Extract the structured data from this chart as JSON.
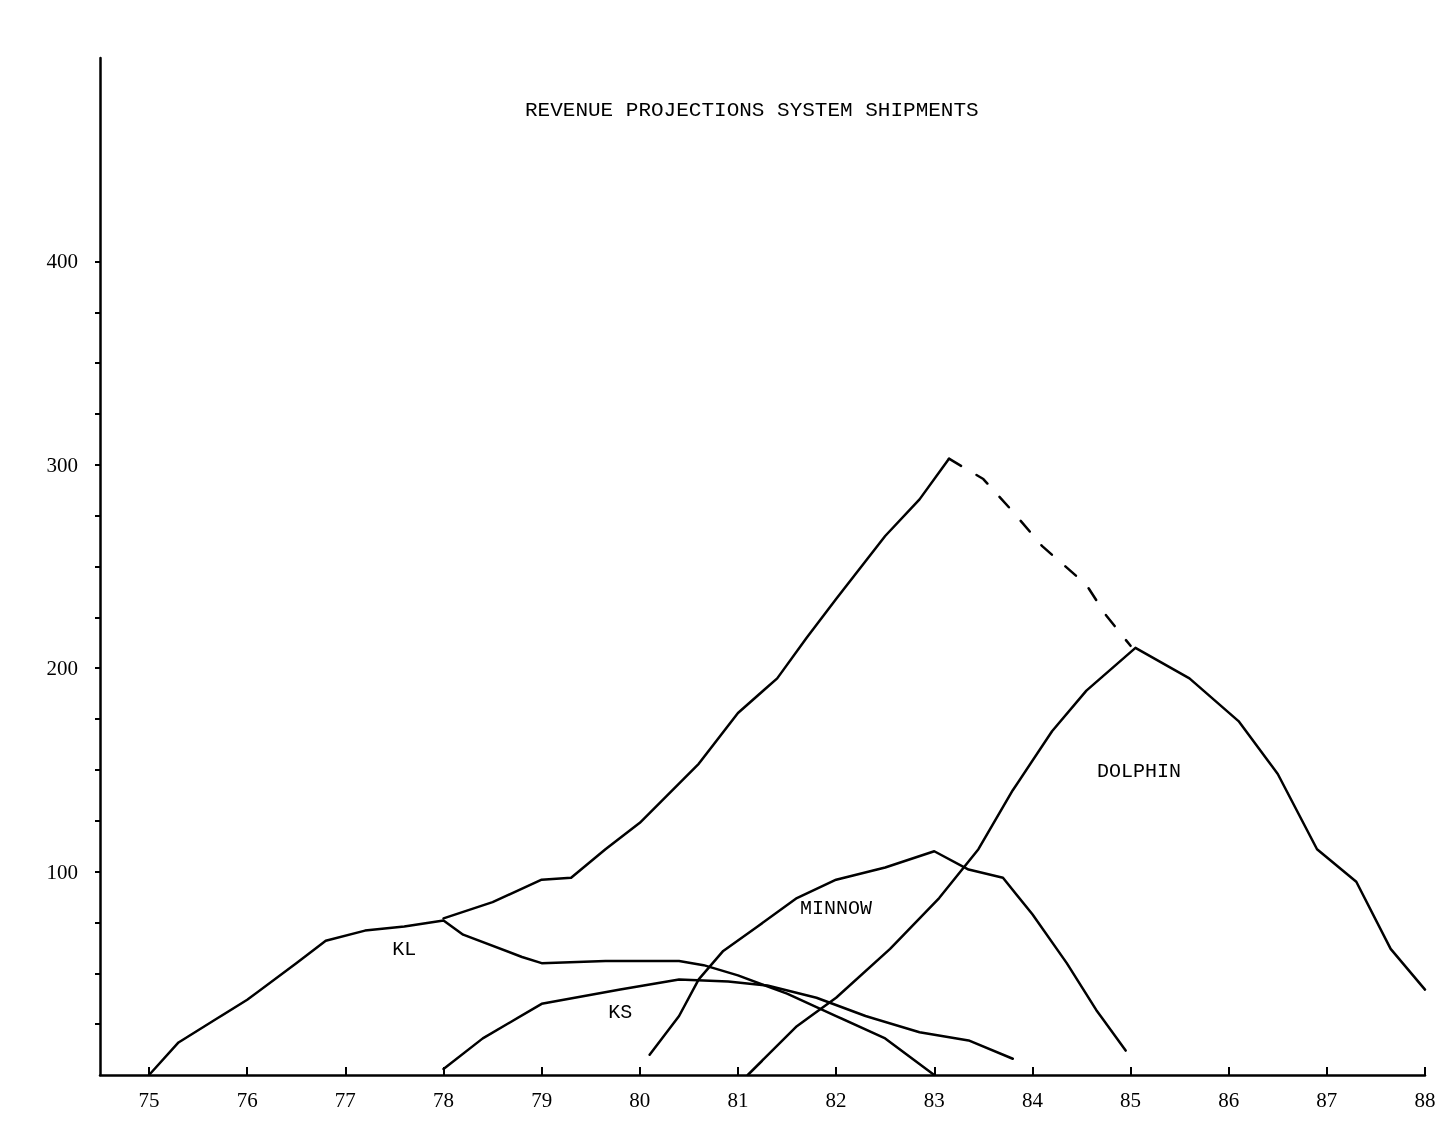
{
  "chart_data": {
    "type": "line",
    "title": "REVENUE PROJECTIONS SYSTEM SHIPMENTS",
    "xlim": [
      74.5,
      88
    ],
    "xticks": [
      75,
      76,
      77,
      78,
      79,
      80,
      81,
      82,
      83,
      84,
      85,
      86,
      87,
      88
    ],
    "ylim": [
      0,
      500
    ],
    "yticks": [
      {
        "value": 25,
        "label": null
      },
      {
        "value": 50,
        "label": null
      },
      {
        "value": 75,
        "label": null
      },
      100,
      {
        "value": 125,
        "label": null
      },
      {
        "value": 150,
        "label": null
      },
      {
        "value": 175,
        "label": null
      },
      200,
      {
        "value": 225,
        "label": null
      },
      {
        "value": 250,
        "label": null
      },
      {
        "value": 275,
        "label": null
      },
      300,
      {
        "value": 325,
        "label": null
      },
      {
        "value": 350,
        "label": null
      },
      {
        "value": 375,
        "label": null
      },
      400
    ],
    "grid": false,
    "legend": false,
    "marker": "none",
    "series": [
      {
        "color": "#000000",
        "line_style": "solid",
        "x": [
          78,
          78.5,
          79,
          79.3,
          79.65,
          80,
          80.6,
          81,
          81.4,
          81.7,
          82,
          82.5,
          82.85,
          83.15
        ],
        "values": [
          77,
          85,
          96,
          97,
          111,
          124,
          153,
          178,
          195,
          215,
          234,
          265,
          283,
          303
        ]
      },
      {
        "color": "#000000",
        "line_style": "dashed",
        "x": [
          83.15,
          83.5,
          83.8,
          84.1,
          84.55,
          84.75,
          85
        ],
        "values": [
          303,
          293,
          277,
          260,
          241,
          226,
          211
        ]
      },
      {
        "name": "KL",
        "color": "#000000",
        "line_style": "solid",
        "x": [
          75,
          75.3,
          75.7,
          76,
          76.5,
          76.8,
          77.2,
          77.6,
          78,
          78.2,
          78.8,
          79,
          79.65,
          80.4,
          80.65,
          81,
          81.5,
          82,
          82.5,
          83
        ],
        "values": [
          0,
          16,
          28,
          37,
          55,
          66,
          71,
          73,
          76,
          69,
          58,
          55,
          56,
          56,
          54,
          49,
          40,
          29,
          18,
          0
        ]
      },
      {
        "name": "KS",
        "color": "#000000",
        "line_style": "solid",
        "x": [
          78,
          78.4,
          79,
          79.8,
          80.4,
          80.9,
          81.3,
          81.8,
          82.3,
          82.85,
          83.35,
          83.8
        ],
        "values": [
          3,
          18,
          35,
          42,
          47,
          46,
          44,
          38,
          29,
          21,
          17,
          8
        ]
      },
      {
        "name": "MINNOW",
        "color": "#000000",
        "line_style": "solid",
        "x": [
          80.1,
          80.4,
          80.6,
          80.85,
          81.2,
          81.6,
          82,
          82.5,
          83,
          83.35,
          83.7,
          84,
          84.35,
          84.65,
          84.95
        ],
        "values": [
          10,
          29,
          47,
          61,
          73,
          87,
          96,
          102,
          110,
          101,
          97,
          79,
          55,
          32,
          12
        ]
      },
      {
        "name": "DOLPHIN",
        "color": "#000000",
        "line_style": "solid",
        "x": [
          81.1,
          81.6,
          82,
          82.55,
          83.05,
          83.45,
          83.8,
          84.2,
          84.55,
          85.05,
          85.6,
          86.1,
          86.5,
          86.9,
          87.3,
          87.65,
          88
        ],
        "values": [
          0,
          24,
          38,
          62,
          87,
          111,
          140,
          169,
          189,
          210,
          195,
          174,
          148,
          111,
          95,
          62,
          42
        ]
      }
    ]
  }
}
